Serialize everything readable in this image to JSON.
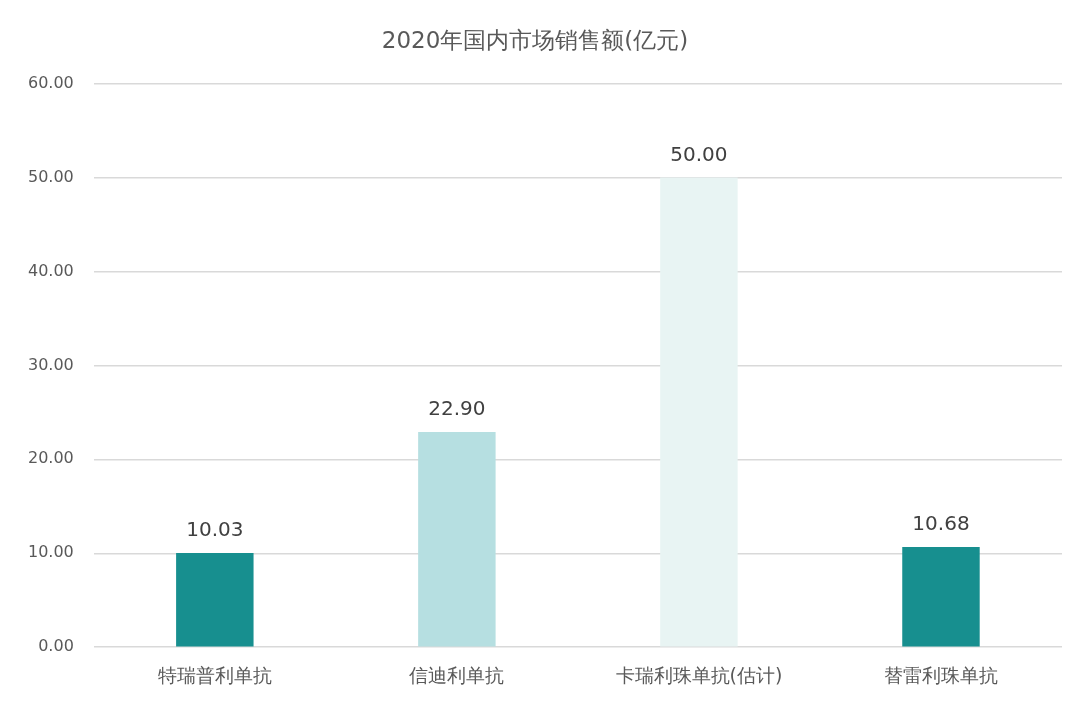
{
  "chart_data": {
    "type": "bar",
    "title": "2020年国内市场销售额(亿元)",
    "categories": [
      "特瑞普利单抗",
      "信迪利单抗",
      "卡瑞利珠单抗(估计)",
      "替雷利珠单抗"
    ],
    "values": [
      10.03,
      22.9,
      50.0,
      10.68
    ],
    "colors": [
      "#178f8f",
      "#b6dfe1",
      "#e8f4f3",
      "#178f8f"
    ],
    "value_labels": [
      "10.03",
      "22.90",
      "50.00",
      "10.68"
    ],
    "ylim": [
      0,
      60
    ],
    "yticks": [
      {
        "value": 0,
        "label": "0.00"
      },
      {
        "value": 10,
        "label": "10.00"
      },
      {
        "value": 20,
        "label": "20.00"
      },
      {
        "value": 30,
        "label": "30.00"
      },
      {
        "value": 40,
        "label": "40.00"
      },
      {
        "value": 50,
        "label": "50.00"
      },
      {
        "value": 60,
        "label": "60.00"
      }
    ],
    "grid": "y"
  }
}
